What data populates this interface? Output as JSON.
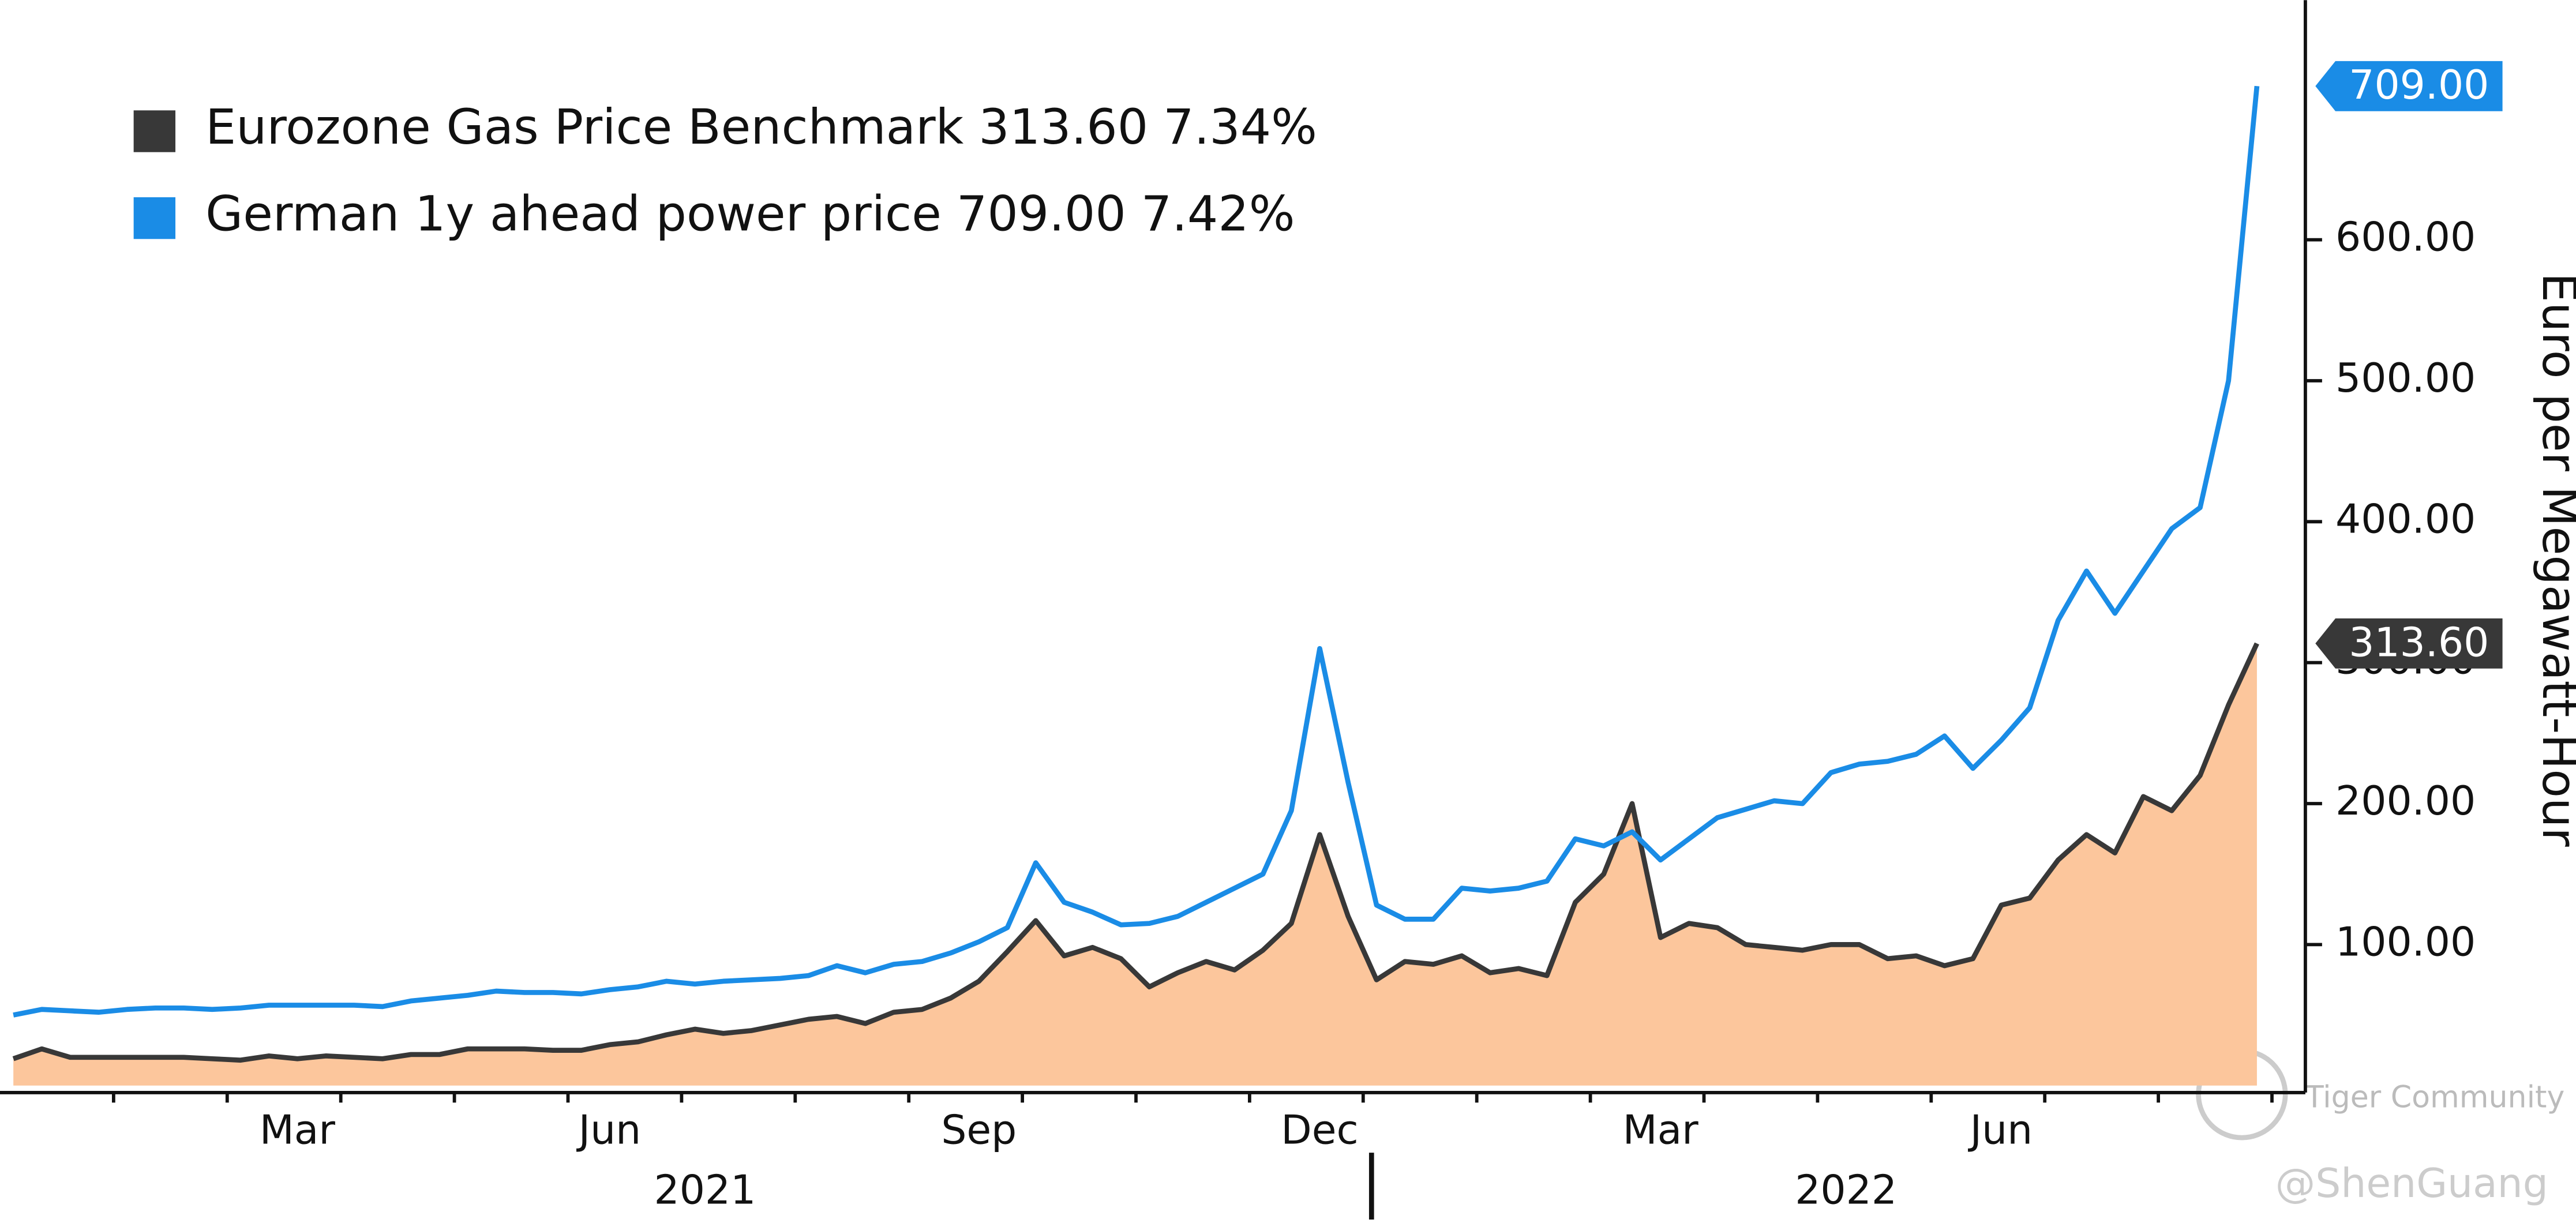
{
  "chart_data": {
    "type": "line",
    "y_axis_label": "Euro per Megawatt-Hour",
    "categories": [
      null,
      null,
      null,
      null,
      null,
      null,
      null,
      null,
      null,
      null,
      "Mar",
      null,
      null,
      null,
      null,
      null,
      null,
      null,
      null,
      null,
      null,
      "Jun",
      null,
      null,
      null,
      null,
      null,
      null,
      null,
      null,
      null,
      null,
      null,
      null,
      "Sep",
      null,
      null,
      null,
      null,
      null,
      null,
      null,
      null,
      null,
      null,
      null,
      "Dec",
      null,
      null,
      null,
      null,
      null,
      null,
      null,
      null,
      null,
      null,
      null,
      "Mar",
      null,
      null,
      null,
      null,
      null,
      null,
      null,
      null,
      null,
      null,
      null,
      "Jun",
      null,
      null,
      null,
      null,
      null,
      null,
      null,
      null,
      null
    ],
    "x_group_labels": [
      "2021",
      "2022"
    ],
    "series": [
      {
        "name": "Eurozone Gas Price Benchmark",
        "legend_value": "313.60",
        "legend_change": "7.34%",
        "last_label": "313.60",
        "color": "#383838",
        "area_color": "#fcc69c",
        "area": true,
        "values": [
          19,
          26,
          20,
          20,
          20,
          20,
          20,
          19,
          18,
          21,
          19,
          21,
          20,
          19,
          22,
          22,
          26,
          26,
          26,
          25,
          25,
          29,
          31,
          36,
          40,
          37,
          39,
          43,
          47,
          49,
          44,
          52,
          54,
          62,
          74,
          95,
          117,
          92,
          98,
          90,
          70,
          80,
          88,
          82,
          96,
          115,
          178,
          120,
          75,
          88,
          86,
          92,
          80,
          83,
          78,
          130,
          150,
          200,
          105,
          115,
          112,
          100,
          98,
          96,
          100,
          100,
          90,
          92,
          85,
          90,
          128,
          133,
          160,
          178,
          165,
          205,
          195,
          220,
          270,
          313.6
        ]
      },
      {
        "name": "German 1y ahead power price",
        "legend_value": "709.00",
        "legend_change": "7.42%",
        "last_label": "709.00",
        "color": "#1a8ce6",
        "area": false,
        "values": [
          50,
          54,
          53,
          52,
          54,
          55,
          55,
          54,
          55,
          57,
          57,
          57,
          57,
          56,
          60,
          62,
          64,
          67,
          66,
          66,
          65,
          68,
          70,
          74,
          72,
          74,
          75,
          76,
          78,
          85,
          80,
          86,
          88,
          94,
          102,
          112,
          158,
          130,
          123,
          114,
          115,
          120,
          130,
          140,
          150,
          195,
          310,
          215,
          128,
          118,
          118,
          140,
          138,
          140,
          145,
          175,
          170,
          180,
          160,
          175,
          190,
          196,
          202,
          200,
          222,
          228,
          230,
          235,
          248,
          225,
          245,
          268,
          330,
          365,
          335,
          365,
          395,
          410,
          500,
          709
        ]
      }
    ],
    "ylim": [
      -5,
      770
    ],
    "yticks": [
      {
        "value": 100,
        "label": "100.00"
      },
      {
        "value": 200,
        "label": "200.00"
      },
      {
        "value": 300,
        "label": "300.00"
      },
      {
        "value": 400,
        "label": "400.00"
      },
      {
        "value": 500,
        "label": "500.00"
      },
      {
        "value": 600,
        "label": "600.00"
      }
    ],
    "watermark": [
      "Tiger Community",
      "@ShenGuang"
    ]
  }
}
